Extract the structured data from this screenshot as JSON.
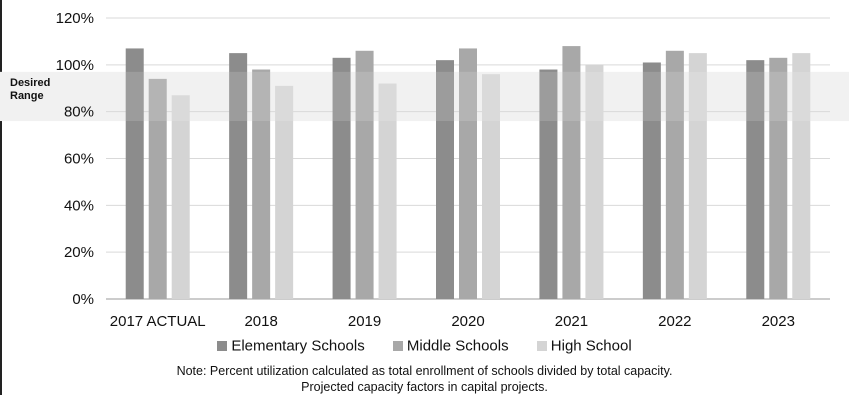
{
  "chart_data": {
    "type": "bar",
    "categories": [
      "2017 ACTUAL",
      "2018",
      "2019",
      "2020",
      "2021",
      "2022",
      "2023"
    ],
    "series": [
      {
        "name": "Elementary Schools",
        "color": "#8c8c8c",
        "values": [
          107,
          105,
          103,
          102,
          98,
          101,
          102
        ]
      },
      {
        "name": "Middle Schools",
        "color": "#a8a8a8",
        "values": [
          94,
          98,
          106,
          107,
          108,
          106,
          103
        ]
      },
      {
        "name": "High School",
        "color": "#d4d4d4",
        "values": [
          87,
          91,
          92,
          96,
          100,
          105,
          105
        ]
      }
    ],
    "ylim": [
      0,
      120
    ],
    "yticks": [
      "0%",
      "20%",
      "40%",
      "60%",
      "80%",
      "100%",
      "120%"
    ],
    "ytick_values": [
      0,
      20,
      40,
      60,
      80,
      100,
      120
    ],
    "desired_range": {
      "label_line1": "Desired",
      "label_line2": "Range",
      "low": 76,
      "high": 97
    },
    "grid": true,
    "legend_position": "bottom",
    "note_line1": "Note:  Percent utilization calculated as total enrollment of schools divided by total capacity.",
    "note_line2": "Projected capacity factors in capital projects."
  }
}
